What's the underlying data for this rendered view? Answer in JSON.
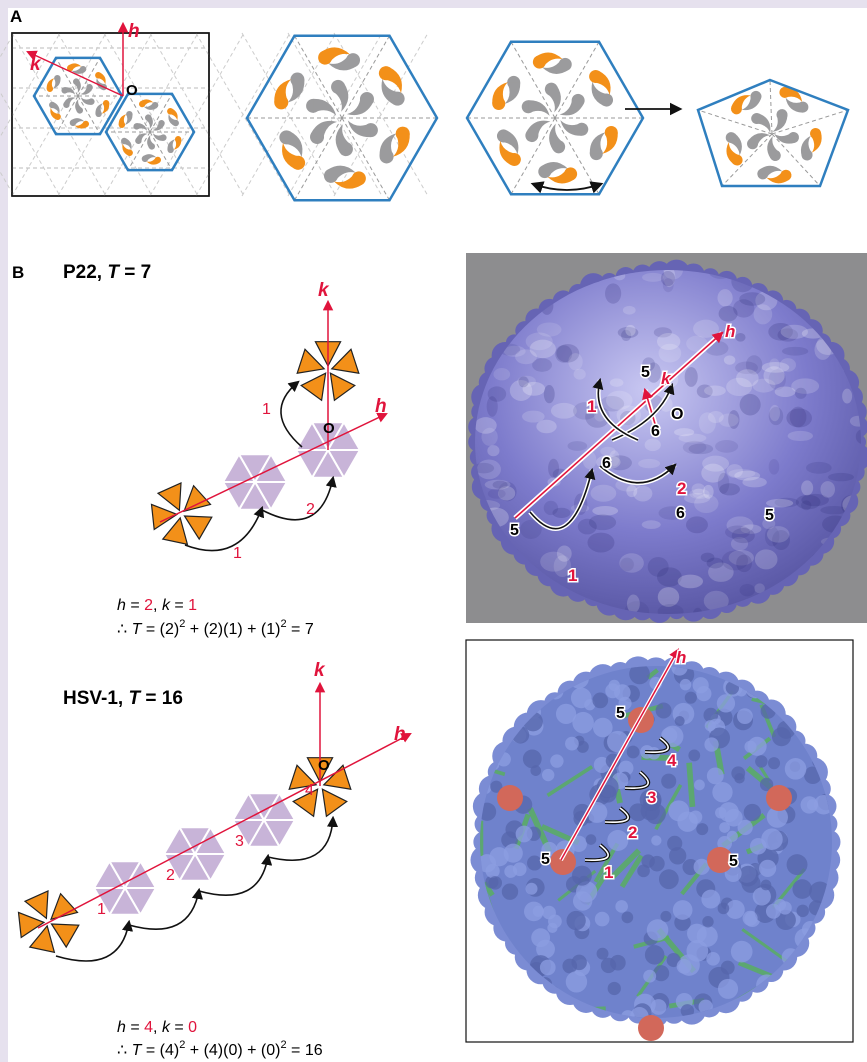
{
  "panel_a": {
    "label": "A",
    "h": "h",
    "k": "k",
    "origin": "O"
  },
  "panel_b": {
    "label": "B",
    "p22": {
      "title": [
        "P22, ",
        "T",
        " = 7"
      ],
      "diagram": {
        "k": "k",
        "h": "h",
        "origin": "O",
        "steps": [
          "1",
          "2",
          "1"
        ]
      },
      "equation": [
        [
          "h",
          " = ",
          "2",
          ", ",
          "k",
          " = ",
          "1"
        ],
        [
          "∴ ",
          "T",
          " = (2)",
          "2",
          " + (2)(1) + (1)",
          "2",
          " = 7"
        ]
      ],
      "image_labels": {
        "k": "k",
        "h": "h",
        "origin": "O",
        "fives": [
          "5",
          "5",
          "5"
        ],
        "sixes": [
          "6",
          "6",
          "6"
        ],
        "steps": [
          "1",
          "2",
          "1"
        ]
      }
    },
    "hsv1": {
      "title": [
        "HSV-1, ",
        "T",
        " = 16"
      ],
      "diagram": {
        "k": "k",
        "h": "h",
        "origin": "O",
        "steps": [
          "1",
          "2",
          "3",
          "4"
        ]
      },
      "equation": [
        [
          "h",
          " = ",
          "4",
          ", ",
          "k",
          " = ",
          "0"
        ],
        [
          "∴ ",
          "T",
          " = (4)",
          "2",
          " + (4)(0) + (0)",
          "2",
          " = 16"
        ]
      ],
      "image_labels": {
        "h": "h",
        "fives": [
          "5",
          "5",
          "5"
        ],
        "steps": [
          "4",
          "3",
          "2",
          "1"
        ]
      }
    }
  }
}
